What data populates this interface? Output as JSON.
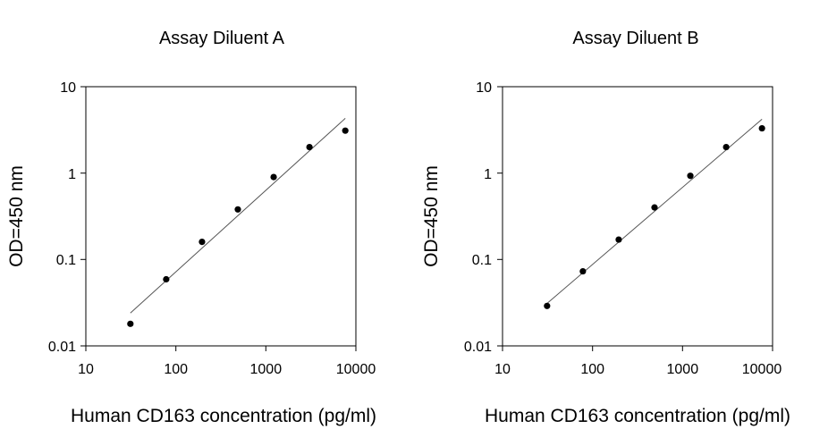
{
  "chart_data": [
    {
      "type": "scatter",
      "title": "Assay Diluent A",
      "xlabel": "Human CD163 concentration (pg/ml)",
      "ylabel": "OD=450 nm",
      "xscale": "log",
      "yscale": "log",
      "xlim": [
        10,
        10000
      ],
      "ylim": [
        0.01,
        10
      ],
      "xticks": [
        "10",
        "100",
        "1000",
        "10000"
      ],
      "yticks": [
        "10",
        "1",
        "0.1",
        "0.01"
      ],
      "grid": false,
      "series": [
        {
          "points": [
            {
              "x": 31.25,
              "y": 0.018
            },
            {
              "x": 78.1,
              "y": 0.059
            },
            {
              "x": 195.3,
              "y": 0.16
            },
            {
              "x": 488.3,
              "y": 0.38
            },
            {
              "x": 1220.7,
              "y": 0.9
            },
            {
              "x": 3051.8,
              "y": 2.0
            },
            {
              "x": 7629.4,
              "y": 3.1
            }
          ]
        }
      ],
      "fit_line": {
        "x": [
          31.25,
          7629.4
        ],
        "y": [
          0.024,
          4.3
        ]
      }
    },
    {
      "type": "scatter",
      "title": "Assay Diluent B",
      "xlabel": "Human CD163 concentration (pg/ml)",
      "ylabel": "OD=450 nm",
      "xscale": "log",
      "yscale": "log",
      "xlim": [
        10,
        10000
      ],
      "ylim": [
        0.01,
        10
      ],
      "xticks": [
        "10",
        "100",
        "1000",
        "10000"
      ],
      "yticks": [
        "10",
        "1",
        "0.1",
        "0.01"
      ],
      "grid": false,
      "series": [
        {
          "points": [
            {
              "x": 31.25,
              "y": 0.029
            },
            {
              "x": 78.1,
              "y": 0.073
            },
            {
              "x": 195.3,
              "y": 0.17
            },
            {
              "x": 488.3,
              "y": 0.4
            },
            {
              "x": 1220.7,
              "y": 0.93
            },
            {
              "x": 3051.8,
              "y": 2.0
            },
            {
              "x": 7629.4,
              "y": 3.3
            }
          ]
        }
      ],
      "fit_line": {
        "x": [
          31.25,
          7629.4
        ],
        "y": [
          0.031,
          4.2
        ]
      }
    }
  ]
}
